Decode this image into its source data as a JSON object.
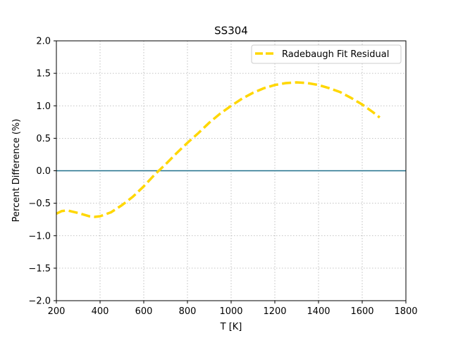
{
  "chart_data": {
    "type": "line",
    "title": "SS304",
    "xlabel": "T [K]",
    "ylabel": "Percent Difference (%)",
    "xlim": [
      200,
      1800
    ],
    "ylim": [
      -2.0,
      2.0
    ],
    "xticks": [
      200,
      400,
      600,
      800,
      1000,
      1200,
      1400,
      1600,
      1800
    ],
    "xtick_labels": [
      "200",
      "400",
      "600",
      "800",
      "1000",
      "1200",
      "1400",
      "1600",
      "1800"
    ],
    "yticks": [
      2.0,
      1.5,
      1.0,
      0.5,
      0.0,
      -0.5,
      -1.0,
      -1.5,
      -2.0
    ],
    "ytick_labels": [
      "2.0",
      "1.5",
      "1.0",
      "0.5",
      "0.0",
      "−0.5",
      "−1.0",
      "−1.5",
      "−2.0"
    ],
    "grid": true,
    "legend_position": "upper right",
    "reference_line": {
      "y": 0.0,
      "color": "#1f6f8b"
    },
    "series": [
      {
        "name": "Radebaugh Fit Residual",
        "color": "#ffd700",
        "style": "dashed",
        "x": [
          200,
          225,
          250,
          300,
          350,
          375,
          400,
          450,
          500,
          550,
          600,
          650,
          700,
          750,
          800,
          850,
          900,
          950,
          1000,
          1050,
          1100,
          1150,
          1200,
          1250,
          1300,
          1350,
          1400,
          1450,
          1500,
          1550,
          1600,
          1650,
          1680
        ],
        "y": [
          -0.66,
          -0.62,
          -0.61,
          -0.65,
          -0.7,
          -0.71,
          -0.7,
          -0.64,
          -0.53,
          -0.4,
          -0.24,
          -0.06,
          0.1,
          0.27,
          0.43,
          0.58,
          0.74,
          0.88,
          1.0,
          1.11,
          1.2,
          1.27,
          1.32,
          1.35,
          1.36,
          1.35,
          1.32,
          1.27,
          1.21,
          1.12,
          1.02,
          0.9,
          0.82
        ]
      }
    ]
  }
}
